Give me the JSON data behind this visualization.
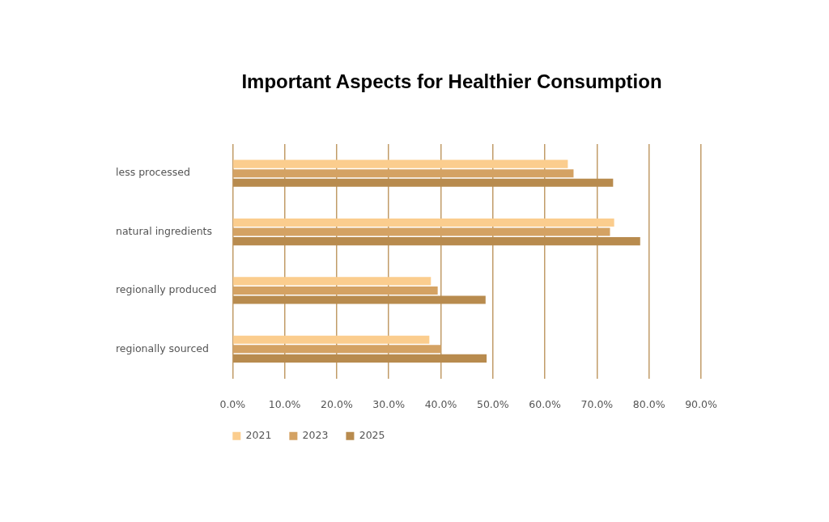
{
  "chart_data": {
    "type": "bar",
    "orientation": "horizontal",
    "title": "Important Aspects for Healthier Consumption",
    "categories": [
      "less processed",
      "natural ingredients",
      "regionally produced",
      "regionally sourced"
    ],
    "series": [
      {
        "name": "2021",
        "color": "#fbcd8e",
        "values": [
          64.4,
          73.3,
          38.1,
          37.8
        ]
      },
      {
        "name": "2023",
        "color": "#d4a263",
        "values": [
          65.5,
          72.5,
          39.4,
          40.0
        ]
      },
      {
        "name": "2025",
        "color": "#b88b4e",
        "values": [
          73.1,
          78.3,
          48.6,
          48.8
        ]
      }
    ],
    "xlim": [
      0,
      90
    ],
    "xticks": [
      {
        "value": 0,
        "label": "0.0%"
      },
      {
        "value": 10,
        "label": "10.0%"
      },
      {
        "value": 20,
        "label": "20.0%"
      },
      {
        "value": 30,
        "label": "30.0%"
      },
      {
        "value": 40,
        "label": "40.0%"
      },
      {
        "value": 50,
        "label": "50.0%"
      },
      {
        "value": 60,
        "label": "60.0%"
      },
      {
        "value": 70,
        "label": "70.0%"
      },
      {
        "value": 80,
        "label": "80.0%"
      },
      {
        "value": 90,
        "label": "90.0%"
      }
    ],
    "grid": "x",
    "legend": "bottom left"
  }
}
